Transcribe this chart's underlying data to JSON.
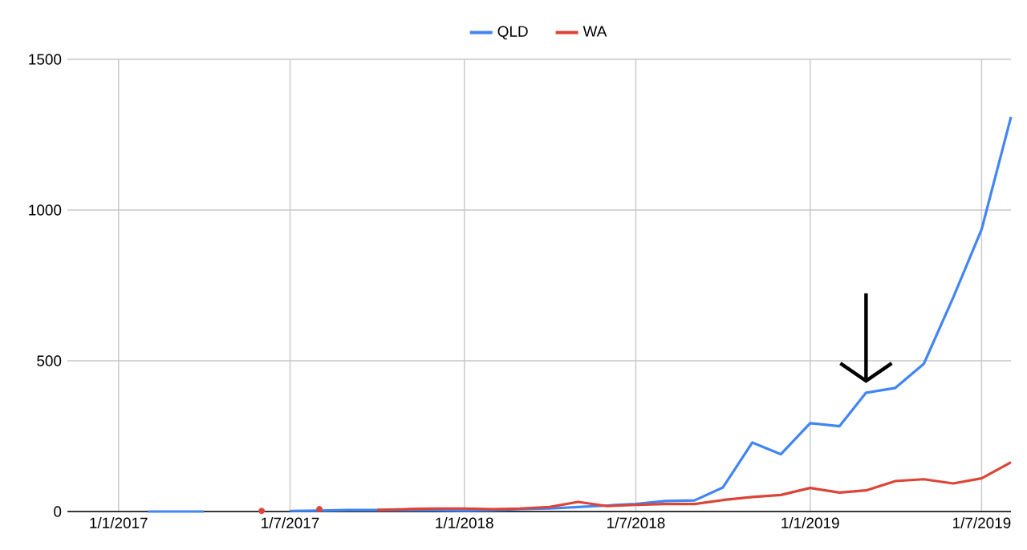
{
  "chart_data": {
    "type": "line",
    "x": [
      "2017-02",
      "2017-03",
      "2017-04",
      "2017-05",
      "2017-06",
      "2017-07",
      "2017-08",
      "2017-09",
      "2017-10",
      "2017-11",
      "2017-12",
      "2018-01",
      "2018-02",
      "2018-03",
      "2018-04",
      "2018-05",
      "2018-06",
      "2018-07",
      "2018-08",
      "2018-09",
      "2018-10",
      "2018-11",
      "2018-12",
      "2019-01",
      "2019-02",
      "2019-03",
      "2019-04",
      "2019-05",
      "2019-06",
      "2019-07",
      "2019-08"
    ],
    "series": [
      {
        "name": "QLD",
        "color": "#4285f4",
        "values": [
          0,
          0,
          0,
          null,
          null,
          2,
          3,
          5,
          5,
          5,
          5,
          3,
          5,
          8,
          10,
          15,
          20,
          25,
          35,
          37,
          80,
          229,
          190,
          293,
          283,
          394,
          410,
          490,
          710,
          936,
          1309
        ]
      },
      {
        "name": "WA",
        "color": "#db4437",
        "values": [
          null,
          null,
          null,
          null,
          2,
          null,
          8,
          null,
          5,
          8,
          10,
          10,
          8,
          10,
          15,
          32,
          18,
          22,
          25,
          25,
          38,
          48,
          55,
          78,
          63,
          70,
          101,
          107,
          93,
          110,
          163
        ]
      }
    ],
    "xlim": [
      "2016-11-08",
      "2019-08-01"
    ],
    "xticks": [
      {
        "value": "2017-01-01",
        "label": "1/1/2017"
      },
      {
        "value": "2017-07-01",
        "label": "1/7/2017"
      },
      {
        "value": "2018-01-01",
        "label": "1/1/2018"
      },
      {
        "value": "2018-07-01",
        "label": "1/7/2018"
      },
      {
        "value": "2019-01-01",
        "label": "1/1/2019"
      },
      {
        "value": "2019-07-01",
        "label": "1/7/2019"
      }
    ],
    "ylim": [
      0,
      1500
    ],
    "yticks": [
      0,
      500,
      1000,
      1500
    ],
    "grid": true,
    "legend": "top"
  }
}
